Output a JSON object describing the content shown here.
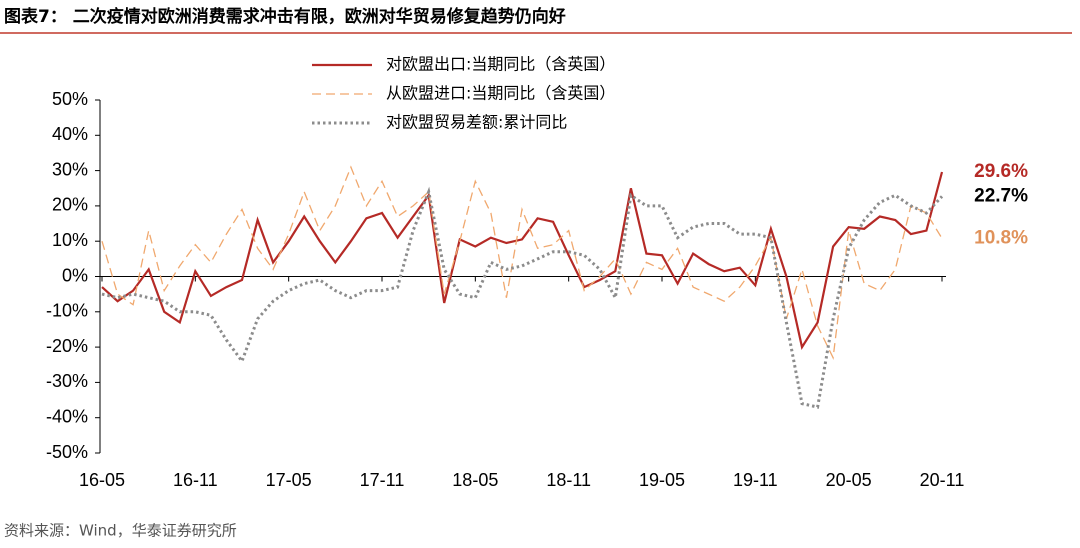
{
  "chart_data": {
    "type": "line",
    "title": "图表7：  二次疫情对欧洲消费需求冲击有限，欧洲对华贸易修复趋势仍向好",
    "source": "资料来源：Wind，华泰证券研究所",
    "categories": [
      "16-05",
      null,
      null,
      null,
      null,
      null,
      "16-11",
      null,
      null,
      null,
      null,
      null,
      "17-05",
      null,
      null,
      null,
      null,
      null,
      "17-11",
      null,
      null,
      null,
      null,
      null,
      "18-05",
      null,
      null,
      null,
      null,
      null,
      "18-11",
      null,
      null,
      null,
      null,
      null,
      "19-05",
      null,
      null,
      null,
      null,
      null,
      "19-11",
      null,
      null,
      null,
      null,
      null,
      "20-05",
      null,
      null,
      null,
      null,
      null,
      "20-11"
    ],
    "ylim": [
      -50,
      50
    ],
    "yticks": [
      {
        "value": 50,
        "label": "50%"
      },
      {
        "value": 40,
        "label": "40%"
      },
      {
        "value": 30,
        "label": "30%"
      },
      {
        "value": 20,
        "label": "20%"
      },
      {
        "value": 10,
        "label": "10%"
      },
      {
        "value": 0,
        "label": "0%"
      },
      {
        "value": -10,
        "label": "-10%"
      },
      {
        "value": -20,
        "label": "-20%"
      },
      {
        "value": -30,
        "label": "-30%"
      },
      {
        "value": -40,
        "label": "-40%"
      },
      {
        "value": -50,
        "label": "-50%"
      }
    ],
    "legend": "top",
    "series": [
      {
        "name": "对欧盟出口:当期同比（含英国）",
        "color": "#b52a26",
        "style": "solid",
        "label_color": "#b52a26",
        "values": [
          -3,
          -7,
          -4,
          2,
          -10,
          -13,
          1.5,
          -5.5,
          -3,
          -1,
          16,
          4,
          10,
          17,
          10,
          4,
          10,
          16.5,
          18,
          11,
          17,
          23,
          -7.5,
          10.5,
          8.5,
          11,
          9.5,
          10.5,
          16.5,
          15.5,
          6,
          -3,
          -1,
          1.5,
          25,
          6.5,
          6,
          -2,
          6.5,
          3.5,
          1.5,
          2.5,
          -2.5,
          13.5,
          0,
          -20,
          -13,
          8.5,
          14,
          13.5,
          17,
          16,
          12,
          13,
          29.6
        ],
        "value_labels": [
          null,
          null,
          null,
          null,
          null,
          null,
          null,
          null,
          null,
          null,
          null,
          null,
          null,
          null,
          null,
          null,
          null,
          null,
          null,
          null,
          null,
          null,
          null,
          null,
          null,
          null,
          null,
          null,
          null,
          null,
          null,
          null,
          null,
          null,
          null,
          null,
          null,
          null,
          null,
          null,
          null,
          null,
          null,
          null,
          null,
          null,
          null,
          null,
          null,
          null,
          null,
          null,
          null,
          null,
          "29.6%"
        ]
      },
      {
        "name": "从欧盟进口:当期同比（含英国）",
        "color": "#f0a86e",
        "style": "dashed",
        "label_color": "#e0925a",
        "values": [
          10,
          -5,
          -8,
          13,
          -4,
          3,
          9,
          4,
          12,
          19,
          8,
          2,
          12,
          24,
          13,
          20,
          31,
          20,
          27,
          17,
          20,
          24,
          -5,
          10,
          27,
          18,
          -6,
          19,
          8,
          9,
          13,
          -4,
          0,
          5,
          -5,
          4,
          2,
          8,
          -3,
          -5,
          -7,
          -3,
          3,
          11,
          -12,
          2,
          -14,
          -23,
          13,
          -2,
          -4,
          2,
          20,
          18,
          10.8
        ],
        "value_labels": [
          null,
          null,
          null,
          null,
          null,
          null,
          null,
          null,
          null,
          null,
          null,
          null,
          null,
          null,
          null,
          null,
          null,
          null,
          null,
          null,
          null,
          null,
          null,
          null,
          null,
          null,
          null,
          null,
          null,
          null,
          null,
          null,
          null,
          null,
          null,
          null,
          null,
          null,
          null,
          null,
          null,
          null,
          null,
          null,
          null,
          null,
          null,
          null,
          null,
          null,
          null,
          null,
          null,
          null,
          "10.8%"
        ]
      },
      {
        "name": "对欧盟贸易差额:累计同比",
        "color": "#8c8c8c",
        "style": "dotted",
        "label_color": "#000000",
        "values": [
          -5,
          -6,
          -5,
          -6,
          -7,
          -10,
          -10,
          -11,
          -18,
          -24,
          -12,
          -7,
          -4,
          -2,
          -1,
          -4,
          -6,
          -4,
          -4,
          -3,
          13,
          24,
          2,
          -5,
          -6,
          4,
          2,
          3,
          5,
          7,
          7,
          6,
          2,
          -6,
          23,
          20,
          20,
          11,
          14,
          15,
          15,
          12,
          12,
          11,
          -13,
          -36,
          -37,
          -12,
          8,
          16,
          21,
          23,
          20,
          18,
          22.7
        ],
        "value_labels": [
          null,
          null,
          null,
          null,
          null,
          null,
          null,
          null,
          null,
          null,
          null,
          null,
          null,
          null,
          null,
          null,
          null,
          null,
          null,
          null,
          null,
          null,
          null,
          null,
          null,
          null,
          null,
          null,
          null,
          null,
          null,
          null,
          null,
          null,
          null,
          null,
          null,
          null,
          null,
          null,
          null,
          null,
          null,
          null,
          null,
          null,
          null,
          null,
          null,
          null,
          null,
          null,
          null,
          null,
          "22.7%"
        ]
      }
    ]
  }
}
